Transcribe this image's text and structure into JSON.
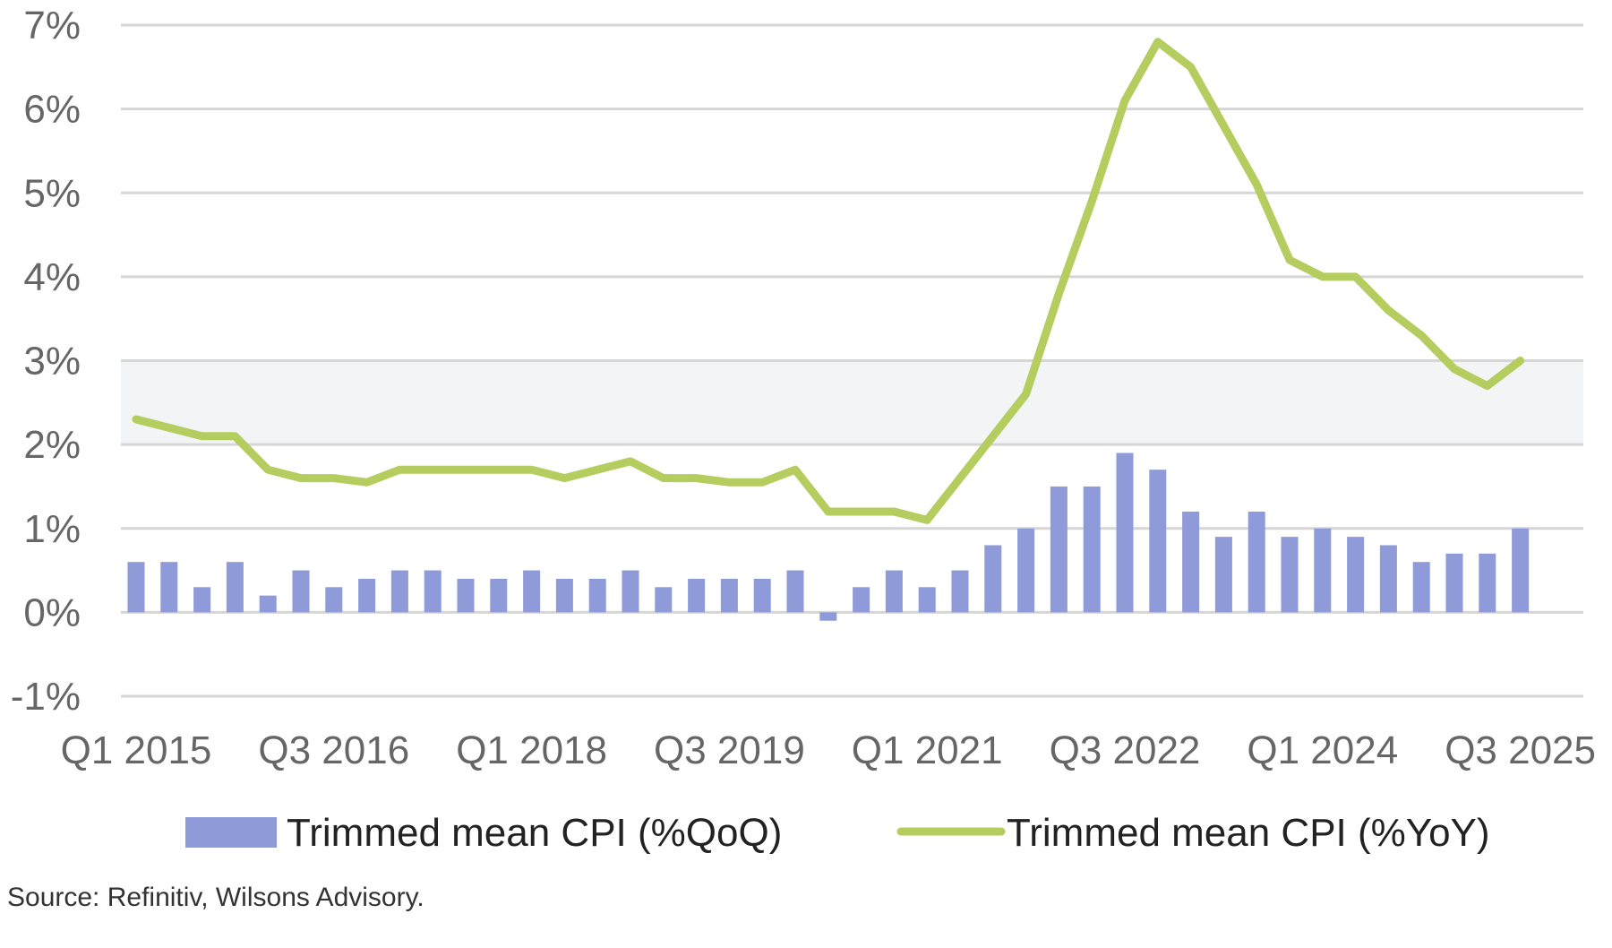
{
  "chart_data": {
    "type": "bar",
    "ylim": [
      -1,
      7
    ],
    "y_ticks": [
      "-1%",
      "0%",
      "1%",
      "2%",
      "3%",
      "4%",
      "5%",
      "6%",
      "7%"
    ],
    "y_tick_values": [
      -1,
      0,
      1,
      2,
      3,
      4,
      5,
      6,
      7
    ],
    "x_tick_labels": [
      "Q1 2015",
      "Q3 2016",
      "Q1 2018",
      "Q3 2019",
      "Q1 2021",
      "Q3 2022",
      "Q1 2024",
      "Q3 2025"
    ],
    "x_tick_indices": [
      0,
      6,
      12,
      18,
      24,
      30,
      36,
      42
    ],
    "categories": [
      "Q1 2015",
      "Q2 2015",
      "Q3 2015",
      "Q4 2015",
      "Q1 2016",
      "Q2 2016",
      "Q3 2016",
      "Q4 2016",
      "Q1 2017",
      "Q2 2017",
      "Q3 2017",
      "Q4 2017",
      "Q1 2018",
      "Q2 2018",
      "Q3 2018",
      "Q4 2018",
      "Q1 2019",
      "Q2 2019",
      "Q3 2019",
      "Q4 2019",
      "Q1 2020",
      "Q2 2020",
      "Q3 2020",
      "Q4 2020",
      "Q1 2021",
      "Q2 2021",
      "Q3 2021",
      "Q4 2021",
      "Q1 2022",
      "Q2 2022",
      "Q3 2022",
      "Q4 2022",
      "Q1 2023",
      "Q2 2023",
      "Q3 2023",
      "Q4 2023",
      "Q1 2024",
      "Q2 2024",
      "Q3 2024",
      "Q4 2024",
      "Q1 2025",
      "Q2 2025",
      "Q3 2025"
    ],
    "target_band": [
      2,
      3
    ],
    "grid": true,
    "legend_position": "bottom",
    "series": [
      {
        "name": "Trimmed mean CPI (%QoQ)",
        "type": "bar",
        "color": "#8e9bd8",
        "values": [
          0.6,
          0.6,
          0.3,
          0.6,
          0.2,
          0.5,
          0.3,
          0.4,
          0.5,
          0.5,
          0.4,
          0.4,
          0.5,
          0.4,
          0.4,
          0.5,
          0.3,
          0.4,
          0.4,
          0.4,
          0.5,
          -0.1,
          0.3,
          0.5,
          0.3,
          0.5,
          0.8,
          1.0,
          1.5,
          1.5,
          1.9,
          1.7,
          1.2,
          0.9,
          1.2,
          0.9,
          1.0,
          0.9,
          0.8,
          0.6,
          0.7,
          0.7,
          1.0
        ]
      },
      {
        "name": "Trimmed mean CPI (%YoY)",
        "type": "line",
        "color": "#b5cc5e",
        "values": [
          2.3,
          2.2,
          2.1,
          2.1,
          1.7,
          1.6,
          1.6,
          1.55,
          1.7,
          1.7,
          1.7,
          1.7,
          1.7,
          1.6,
          1.7,
          1.8,
          1.6,
          1.6,
          1.55,
          1.55,
          1.7,
          1.2,
          1.2,
          1.2,
          1.1,
          1.6,
          2.1,
          2.6,
          3.8,
          4.9,
          6.1,
          6.8,
          6.5,
          5.8,
          5.1,
          4.2,
          4.0,
          4.0,
          3.6,
          3.3,
          2.9,
          2.7,
          3.0
        ]
      }
    ]
  },
  "source": "Source: Refinitiv, Wilsons Advisory."
}
